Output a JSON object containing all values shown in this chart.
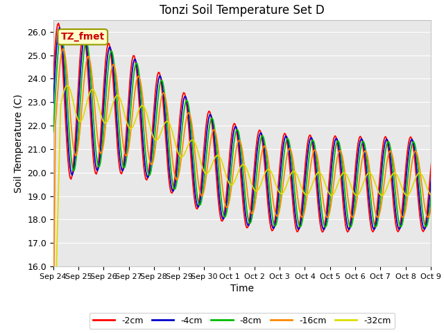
{
  "title": "Tonzi Soil Temperature Set D",
  "xlabel": "Time",
  "ylabel": "Soil Temperature (C)",
  "ylim": [
    16.0,
    26.5
  ],
  "yticks": [
    16.0,
    17.0,
    18.0,
    19.0,
    20.0,
    21.0,
    22.0,
    23.0,
    24.0,
    25.0,
    26.0
  ],
  "annotation_text": "TZ_fmet",
  "annotation_color": "#cc0000",
  "annotation_bg": "#ffffcc",
  "annotation_border": "#999900",
  "series_colors": [
    "#ff0000",
    "#0000cc",
    "#00bb00",
    "#ff8800",
    "#dddd00"
  ],
  "series_labels": [
    "-2cm",
    "-4cm",
    "-8cm",
    "-16cm",
    "-32cm"
  ],
  "bg_color": "#e8e8e8",
  "fig_bg": "#ffffff",
  "x_tick_labels": [
    "Sep 24",
    "Sep 25",
    "Sep 26",
    "Sep 27",
    "Sep 28",
    "Sep 29",
    "Sep 30",
    "Oct 1",
    "Oct 2",
    "Oct 3",
    "Oct 4",
    "Oct 5",
    "Oct 6",
    "Oct 7",
    "Oct 8",
    "Oct 9"
  ],
  "title_fontsize": 12,
  "axis_fontsize": 10,
  "tick_fontsize": 9
}
